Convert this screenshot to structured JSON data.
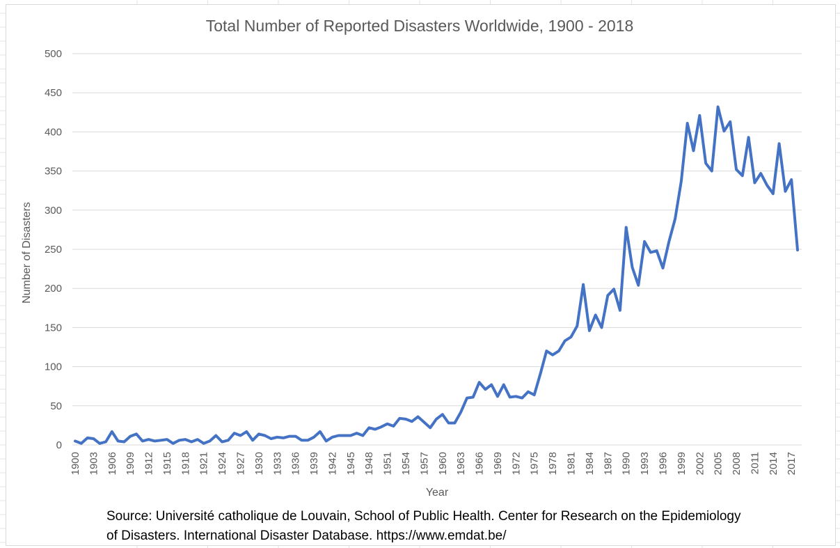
{
  "chart_data": {
    "type": "line",
    "title": "Total Number of Reported Disasters Worldwide, 1900 - 2018",
    "xlabel": "Year",
    "ylabel": "Number of Disasters",
    "ylim": [
      0,
      500
    ],
    "yticks": [
      "0",
      "50",
      "100",
      "150",
      "200",
      "250",
      "300",
      "350",
      "400",
      "450",
      "500"
    ],
    "xtick_labels": [
      "1900",
      "1903",
      "1906",
      "1909",
      "1912",
      "1915",
      "1918",
      "1921",
      "1924",
      "1927",
      "1930",
      "1933",
      "1936",
      "1939",
      "1942",
      "1945",
      "1948",
      "1951",
      "1954",
      "1957",
      "1960",
      "1963",
      "1966",
      "1969",
      "1972",
      "1975",
      "1978",
      "1981",
      "1984",
      "1987",
      "1990",
      "1993",
      "1996",
      "1999",
      "2002",
      "2005",
      "2008",
      "2011",
      "2014",
      "2017"
    ],
    "grid": "horizontal",
    "legend": "none",
    "line_color": "#4472C4",
    "series": [
      {
        "x": [
          1900,
          1901,
          1902,
          1903,
          1904,
          1905,
          1906,
          1907,
          1908,
          1909,
          1910,
          1911,
          1912,
          1913,
          1914,
          1915,
          1916,
          1917,
          1918,
          1919,
          1920,
          1921,
          1922,
          1923,
          1924,
          1925,
          1926,
          1927,
          1928,
          1929,
          1930,
          1931,
          1932,
          1933,
          1934,
          1935,
          1936,
          1937,
          1938,
          1939,
          1940,
          1941,
          1942,
          1943,
          1944,
          1945,
          1946,
          1947,
          1948,
          1949,
          1950,
          1951,
          1952,
          1953,
          1954,
          1955,
          1956,
          1957,
          1958,
          1959,
          1960,
          1961,
          1962,
          1963,
          1964,
          1965,
          1966,
          1967,
          1968,
          1969,
          1970,
          1971,
          1972,
          1973,
          1974,
          1975,
          1976,
          1977,
          1978,
          1979,
          1980,
          1981,
          1982,
          1983,
          1984,
          1985,
          1986,
          1987,
          1988,
          1989,
          1990,
          1991,
          1992,
          1993,
          1994,
          1995,
          1996,
          1997,
          1998,
          1999,
          2000,
          2001,
          2002,
          2003,
          2004,
          2005,
          2006,
          2007,
          2008,
          2009,
          2010,
          2011,
          2012,
          2013,
          2014,
          2015,
          2016,
          2017,
          2018
        ],
        "values": [
          5,
          2,
          9,
          8,
          2,
          4,
          17,
          5,
          4,
          11,
          14,
          5,
          7,
          5,
          6,
          7,
          2,
          6,
          7,
          4,
          7,
          2,
          5,
          12,
          4,
          6,
          15,
          12,
          17,
          6,
          14,
          12,
          8,
          10,
          9,
          11,
          11,
          6,
          6,
          10,
          17,
          5,
          10,
          12,
          12,
          12,
          15,
          12,
          22,
          20,
          23,
          27,
          24,
          34,
          33,
          30,
          36,
          29,
          22,
          33,
          39,
          28,
          28,
          42,
          60,
          61,
          80,
          71,
          77,
          62,
          77,
          61,
          62,
          60,
          68,
          64,
          91,
          120,
          115,
          120,
          133,
          138,
          152,
          205,
          146,
          166,
          150,
          191,
          199,
          172,
          278,
          227,
          204,
          260,
          246,
          248,
          226,
          260,
          289,
          337,
          411,
          376,
          421,
          360,
          350,
          432,
          401,
          413,
          352,
          344,
          393,
          335,
          347,
          332,
          321,
          385,
          324,
          339,
          249
        ]
      }
    ]
  },
  "source_note": {
    "line1": "Source: Université catholique de Louvain, School of Public Health. Center for Research on the Epidemiology",
    "line2": "of Disasters. International Disaster Database. https://www.emdat.be/"
  }
}
